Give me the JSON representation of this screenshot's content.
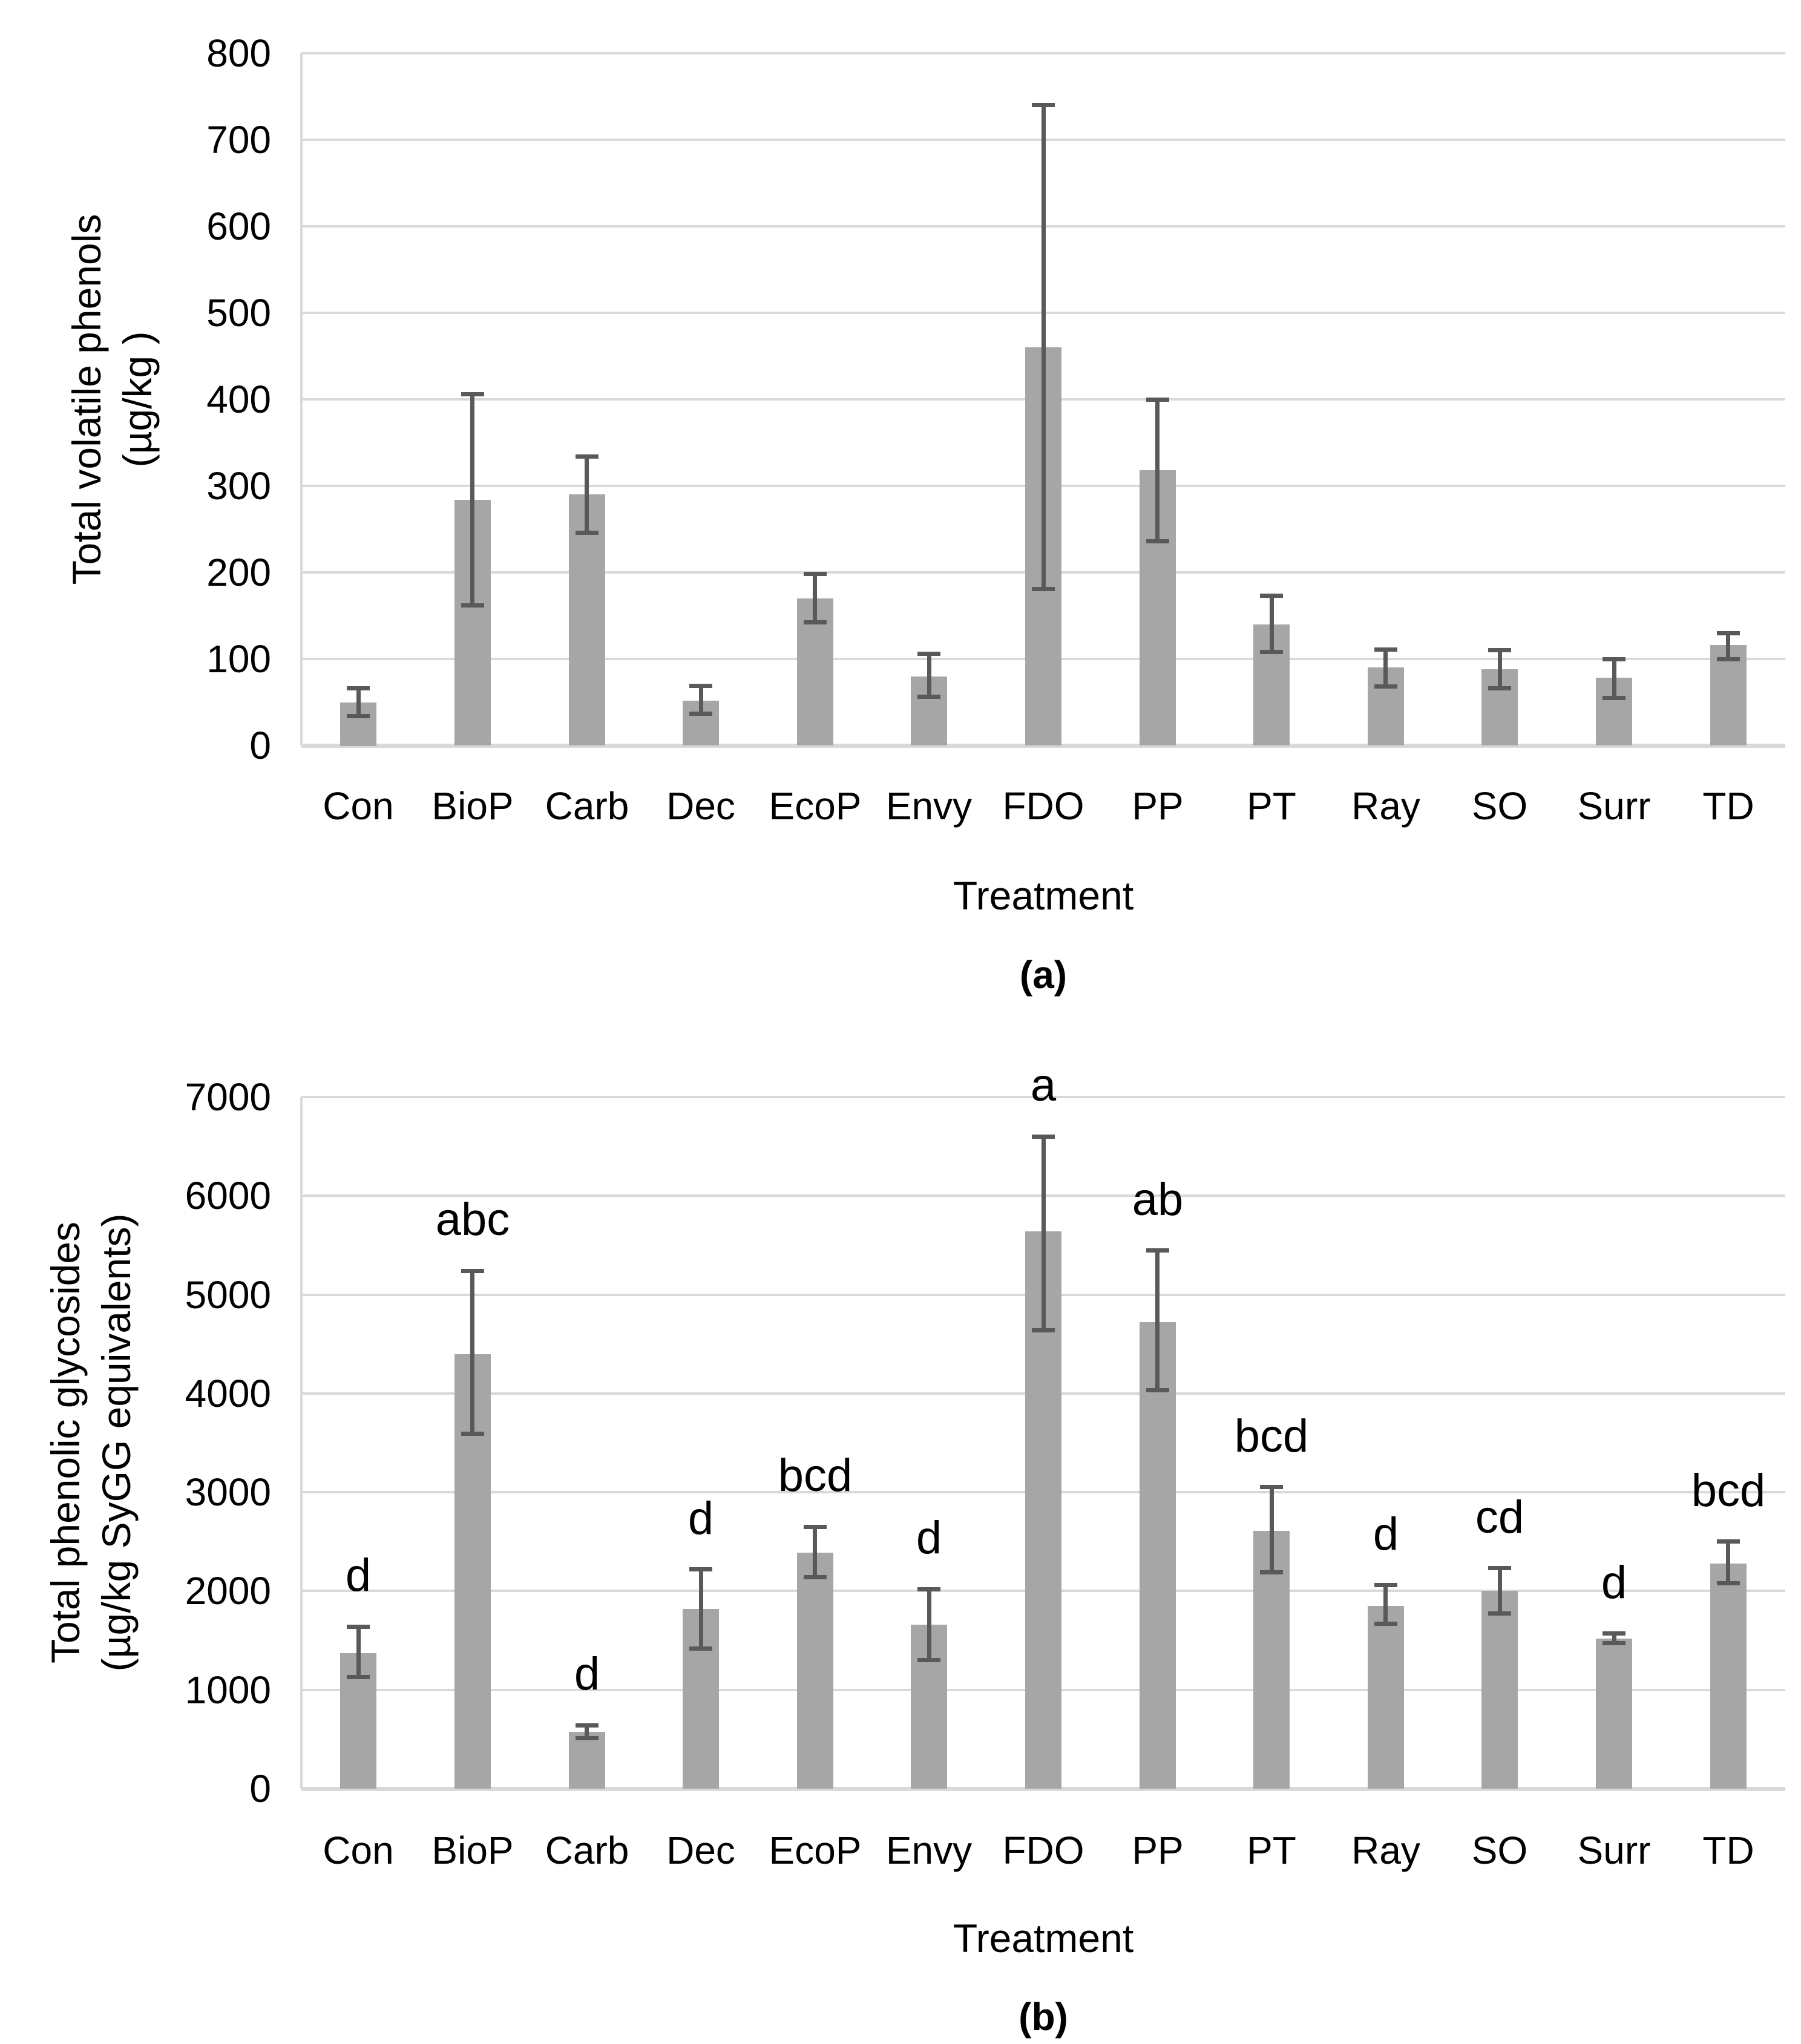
{
  "page": {
    "background": "#ffffff",
    "description_note": "Two stacked single-series bar charts with error bars comparing treatments"
  },
  "colors": {
    "bar_fill": "#a6a6a6",
    "error_bar": "#595959",
    "gridline": "#d9d9d9",
    "text": "#000000"
  },
  "chart_data": [
    {
      "type": "bar",
      "panel": "a",
      "caption": "(a)",
      "title": "",
      "xlabel": "Treatment",
      "ylabel_line1": "Total volatile phenols",
      "ylabel_line2": "(µg/kg )",
      "ylim": [
        0,
        800
      ],
      "ystep": 100,
      "grid": true,
      "legend": "none",
      "categories": [
        "Con",
        "BioP",
        "Carb",
        "Dec",
        "EcoP",
        "Envy",
        "FDO",
        "PP",
        "PT",
        "Ray",
        "SO",
        "Surr",
        "TD"
      ],
      "values": [
        50,
        284,
        290,
        52,
        170,
        80,
        460,
        318,
        140,
        90,
        88,
        78,
        116
      ],
      "error_bar_bottom": [
        34,
        162,
        246,
        37,
        142,
        56,
        181,
        236,
        108,
        68,
        66,
        55,
        100
      ],
      "error_bar_top": [
        66,
        406,
        334,
        69,
        198,
        106,
        740,
        400,
        173,
        111,
        110,
        100,
        130
      ],
      "letters": [
        "",
        "",
        "",
        "",
        "",
        "",
        "",
        "",
        "",
        "",
        "",
        "",
        ""
      ]
    },
    {
      "type": "bar",
      "panel": "b",
      "caption": "(b)",
      "title": "",
      "xlabel": "Treatment",
      "ylabel_line1": "Total phenolic glycosides",
      "ylabel_line2": "(µg/kg SyGG equivalents)",
      "ylim": [
        0,
        7000
      ],
      "ystep": 1000,
      "grid": true,
      "legend": "none",
      "categories": [
        "Con",
        "BioP",
        "Carb",
        "Dec",
        "EcoP",
        "Envy",
        "FDO",
        "PP",
        "PT",
        "Ray",
        "SO",
        "Surr",
        "TD"
      ],
      "values": [
        1370,
        4400,
        575,
        1820,
        2390,
        1660,
        5640,
        4720,
        2610,
        1850,
        2000,
        1520,
        2280
      ],
      "error_bar_bottom": [
        1130,
        3590,
        510,
        1420,
        2140,
        1300,
        4640,
        4030,
        2190,
        1670,
        1770,
        1475,
        2080
      ],
      "error_bar_top": [
        1640,
        5240,
        640,
        2220,
        2650,
        2020,
        6600,
        5445,
        3050,
        2060,
        2230,
        1570,
        2500
      ],
      "letters": [
        "d",
        "abc",
        "d",
        "d",
        "bcd",
        "d",
        "a",
        "ab",
        "bcd",
        "d",
        "cd",
        "d",
        "bcd"
      ]
    }
  ]
}
